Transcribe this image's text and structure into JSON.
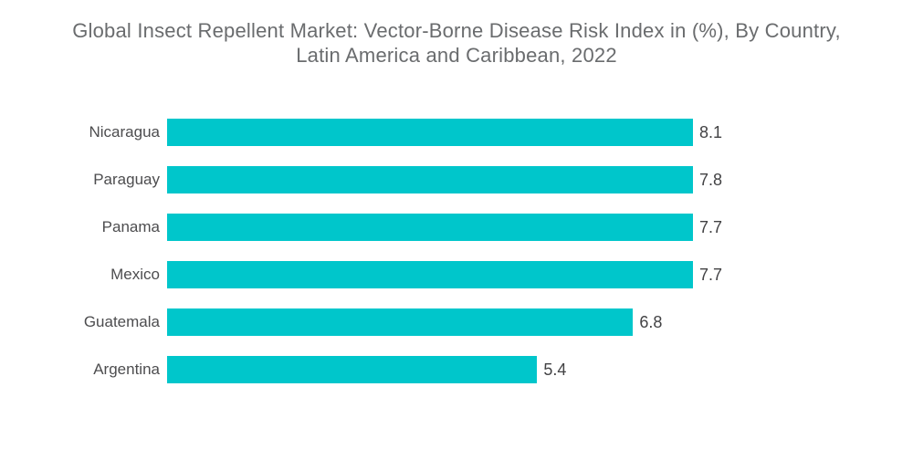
{
  "chart_data": {
    "type": "bar",
    "orientation": "horizontal",
    "title": "Global Insect Repellent Market: Vector-Borne Disease Risk Index in (%), By Country, Latin America and Caribbean, 2022",
    "title_lines": [
      "Global Insect Repellent Market: Vector-Borne Disease Risk Index in (%), By Country,",
      "Latin America and Caribbean, 2022"
    ],
    "categories": [
      "Nicaragua",
      "Paraguay",
      "Panama",
      "Mexico",
      "Guatemala",
      "Argentina"
    ],
    "values": [
      8.1,
      7.8,
      7.7,
      7.7,
      6.8,
      5.4
    ],
    "value_labels": [
      "8.1",
      "7.8",
      "7.7",
      "7.7",
      "6.8",
      "5.4"
    ],
    "xlabel": "",
    "ylabel": "",
    "xlim": [
      0,
      8.1
    ],
    "grid": false,
    "legend": false,
    "bar_color": "#00c6cb",
    "title_color": "#6a6c6e",
    "label_color": "#4d4d4f",
    "background_color": "#ffffff"
  }
}
